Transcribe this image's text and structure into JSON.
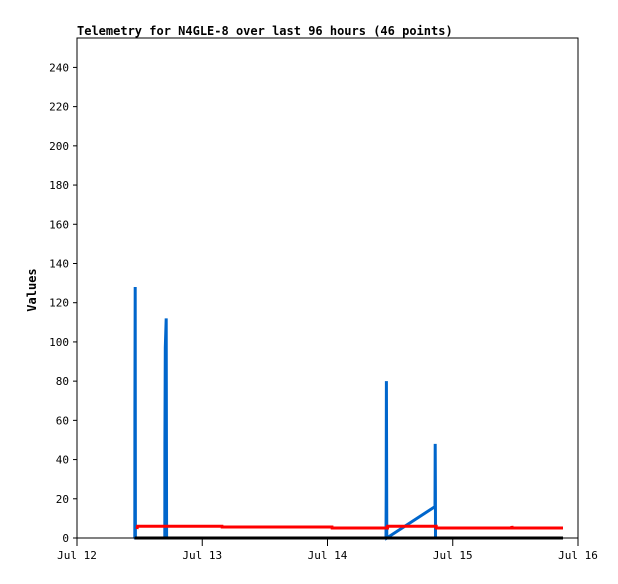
{
  "chart_data": {
    "type": "line",
    "title": "Telemetry for N4GLE-8 over last 96 hours (46 points)",
    "xlabel": "",
    "ylabel": "Values",
    "x_ticks": [
      {
        "label": "Jul 12",
        "t": "07-12T00:00"
      },
      {
        "label": "Jul 13",
        "t": "07-13T00:00"
      },
      {
        "label": "Jul 14",
        "t": "07-14T00:00"
      },
      {
        "label": "Jul 15",
        "t": "07-15T00:00"
      },
      {
        "label": "Jul 16",
        "t": "07-16T00:00"
      }
    ],
    "xlim": [
      "07-12T00:00",
      "07-16T00:00"
    ],
    "ylim": [
      0,
      255
    ],
    "y_ticks": [
      0,
      20,
      40,
      60,
      80,
      100,
      120,
      140,
      160,
      180,
      200,
      220,
      240
    ],
    "grid": false,
    "series": [
      {
        "color": "#0066cc",
        "points": [
          [
            "07-12T11:05",
            0
          ],
          [
            "07-12T11:06",
            64
          ],
          [
            "07-12T11:09",
            128
          ],
          [
            "07-12T11:12",
            0
          ],
          [
            "07-12T16:50",
            0
          ],
          [
            "07-12T16:51",
            48
          ],
          [
            "07-12T16:55",
            97
          ],
          [
            "07-12T17:05",
            112
          ],
          [
            "07-12T17:10",
            0
          ],
          [
            "07-14T11:13",
            0
          ],
          [
            "07-14T11:15",
            24
          ],
          [
            "07-14T11:17",
            80
          ],
          [
            "07-14T11:22",
            0
          ],
          [
            "07-14T20:36",
            16
          ],
          [
            "07-14T20:38",
            48
          ],
          [
            "07-14T20:40",
            24
          ],
          [
            "07-14T20:42",
            0
          ]
        ]
      },
      {
        "color": "#ff0000",
        "points": [
          [
            "07-12T11:30",
            4.6
          ],
          [
            "07-12T11:35",
            6
          ],
          [
            "07-13T03:47",
            6
          ],
          [
            "07-13T03:48",
            5.6
          ],
          [
            "07-14T00:52",
            5.6
          ],
          [
            "07-14T00:53",
            5.1
          ],
          [
            "07-14T11:30",
            5.1
          ],
          [
            "07-14T11:31",
            6
          ],
          [
            "07-14T20:50",
            6
          ],
          [
            "07-14T20:51",
            5.1
          ],
          [
            "07-15T11:18",
            5.1
          ],
          [
            "07-15T11:20",
            6
          ],
          [
            "07-15T11:26",
            5.1
          ],
          [
            "07-15T21:08",
            5.1
          ]
        ]
      },
      {
        "color": "#000000",
        "points": [
          [
            "07-12T11:05",
            0
          ],
          [
            "07-15T21:08",
            0
          ]
        ]
      }
    ]
  }
}
